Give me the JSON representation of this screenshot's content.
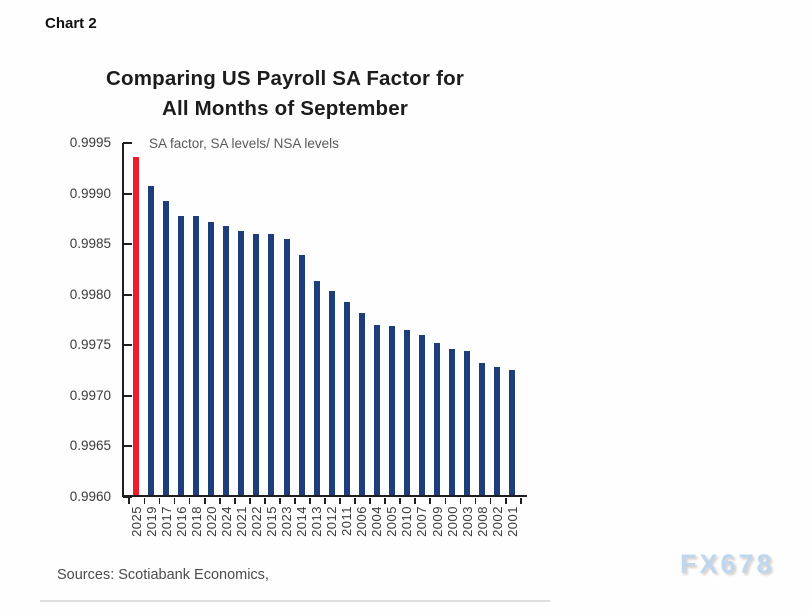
{
  "page": {
    "chart_label": "Chart 2",
    "sources": "Sources: Scotiabank Economics,",
    "watermark": "FX678"
  },
  "chart_data": {
    "type": "bar",
    "title": "Comparing US Payroll SA Factor for All Months of September",
    "title_lines": [
      "Comparing US Payroll SA Factor for",
      "All Months of September"
    ],
    "subtitle": "SA factor, SA levels/ NSA levels",
    "categories": [
      "2025",
      "2019",
      "2017",
      "2016",
      "2018",
      "2020",
      "2024",
      "2021",
      "2022",
      "2015",
      "2023",
      "2014",
      "2013",
      "2012",
      "2011",
      "2006",
      "2004",
      "2005",
      "2010",
      "2007",
      "2009",
      "2000",
      "2003",
      "2008",
      "2002",
      "2001"
    ],
    "values": [
      0.99934,
      0.99906,
      0.99891,
      0.99876,
      0.99876,
      0.9987,
      0.99866,
      0.99861,
      0.99858,
      0.99858,
      0.99853,
      0.99837,
      0.99812,
      0.99802,
      0.99791,
      0.9978,
      0.99768,
      0.99767,
      0.99763,
      0.99758,
      0.9975,
      0.99744,
      0.99742,
      0.99731,
      0.99727,
      0.99724
    ],
    "highlight_category": "2025",
    "colors": {
      "highlight": "#ee1b2d",
      "default": "#1e3d7b"
    },
    "ylim": [
      0.996,
      0.9995
    ],
    "yticks": [
      "0.9995",
      "0.9990",
      "0.9985",
      "0.9980",
      "0.9975",
      "0.9970",
      "0.9965",
      "0.9960"
    ],
    "xlabel": "",
    "ylabel": "",
    "grid": false,
    "legend_position": "none"
  }
}
